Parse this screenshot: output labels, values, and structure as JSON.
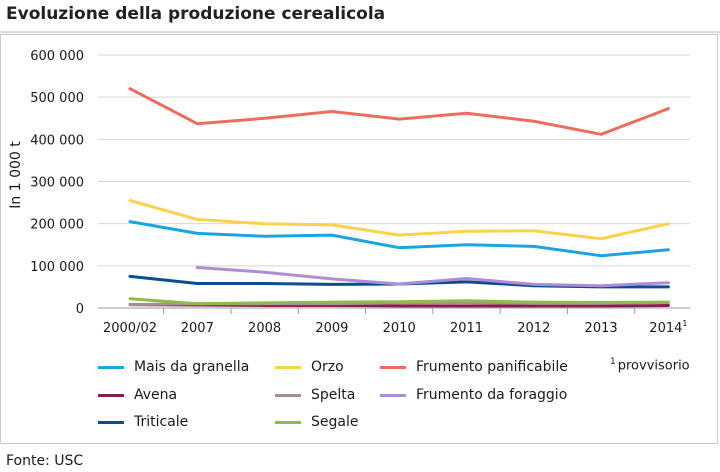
{
  "page": {
    "title": "Evoluzione della produzione cerealicola",
    "source": "Fonte: USC",
    "footnote_mark": "1",
    "footnote_text": "provvisorio"
  },
  "chart_data": {
    "type": "line",
    "title": "Evoluzione della produzione cerealicola",
    "xlabel": "",
    "ylabel": "In 1 000 t",
    "categories": [
      "2000/02",
      "2007",
      "2008",
      "2009",
      "2010",
      "2011",
      "2012",
      "2013",
      "2014"
    ],
    "category_footnote": {
      "index": 8,
      "mark": "1"
    },
    "ylim": [
      0,
      600000
    ],
    "yticks": [
      0,
      100000,
      200000,
      300000,
      400000,
      500000,
      600000
    ],
    "ytick_labels": [
      "0",
      "100 000",
      "200 000",
      "300 000",
      "400 000",
      "500 000",
      "600 000"
    ],
    "grid": true,
    "legend_position": "bottom",
    "series": [
      {
        "name": "Mais da granella",
        "color": "#1ba5e0",
        "values": [
          205000,
          177000,
          170000,
          173000,
          143000,
          150000,
          146000,
          124000,
          138000
        ]
      },
      {
        "name": "Orzo",
        "color": "#fdd14c",
        "values": [
          255000,
          210000,
          200000,
          197000,
          173000,
          182000,
          183000,
          164000,
          200000
        ]
      },
      {
        "name": "Frumento panificabile",
        "color": "#ee6c5c",
        "values": [
          520000,
          437000,
          450000,
          466000,
          448000,
          462000,
          443000,
          412000,
          473000
        ]
      },
      {
        "name": "Avena",
        "color": "#8b1c4f",
        "values": [
          8000,
          7000,
          6000,
          6000,
          5000,
          5000,
          5000,
          5000,
          6000
        ]
      },
      {
        "name": "Spelta",
        "color": "#a39191",
        "values": [
          8000,
          10000,
          10000,
          10000,
          12000,
          13000,
          11000,
          11000,
          13000
        ]
      },
      {
        "name": "Frumento da foraggio",
        "color": "#ad8dd4",
        "values": [
          null,
          96000,
          85000,
          69000,
          57000,
          70000,
          56000,
          53000,
          60000
        ]
      },
      {
        "name": "Triticale",
        "color": "#0c4d91",
        "values": [
          75000,
          58000,
          58000,
          56000,
          57000,
          62000,
          53000,
          50000,
          50000
        ]
      },
      {
        "name": "Segale",
        "color": "#8dbb4c",
        "values": [
          22000,
          10000,
          12000,
          14000,
          15000,
          17000,
          14000,
          13000,
          14000
        ]
      }
    ]
  }
}
